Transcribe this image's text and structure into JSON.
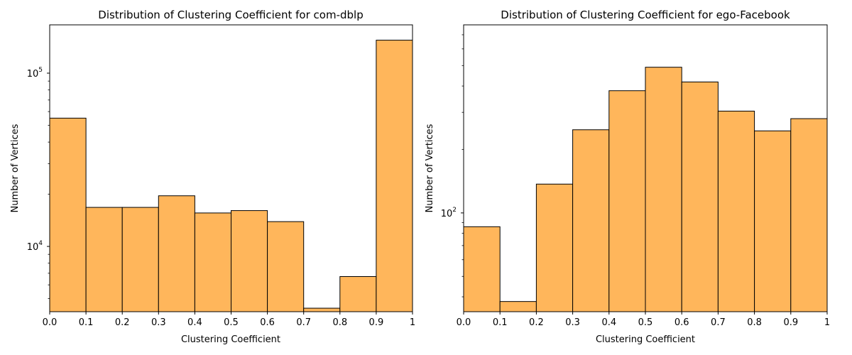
{
  "figure": {
    "bar_color": "#FFB65B",
    "edge_color": "#000000"
  },
  "chart_data": [
    {
      "type": "bar",
      "title": "Distribution of Clustering Coefficient for com-dblp",
      "xlabel": "Clustering Coefficient",
      "ylabel": "Number of Vertices",
      "yscale": "log",
      "xlim": [
        0,
        1
      ],
      "ylim": [
        4200,
        190000
      ],
      "bin_edges": [
        0.0,
        0.1,
        0.2,
        0.3,
        0.4,
        0.5,
        0.6,
        0.7,
        0.8,
        0.9,
        1.0
      ],
      "values": [
        55000,
        16800,
        16800,
        19600,
        15600,
        16100,
        13900,
        4400,
        6700,
        155000
      ],
      "x_ticks": [
        "0.0",
        "0.1",
        "0.2",
        "0.3",
        "0.4",
        "0.5",
        "0.6",
        "0.7",
        "0.8",
        "0.9",
        "1"
      ],
      "y_major_ticks": [
        {
          "value": 10000,
          "base": "10",
          "exp": "4"
        },
        {
          "value": 100000,
          "base": "10",
          "exp": "5"
        }
      ],
      "grid": false
    },
    {
      "type": "bar",
      "title": "Distribution of Clustering Coefficient for ego-Facebook",
      "xlabel": "Clustering Coefficient",
      "ylabel": "Number of Vertices",
      "yscale": "log",
      "xlim": [
        0,
        1
      ],
      "ylim": [
        34,
        780
      ],
      "bin_edges": [
        0.0,
        0.1,
        0.2,
        0.3,
        0.4,
        0.5,
        0.6,
        0.7,
        0.8,
        0.9,
        1.0
      ],
      "values": [
        86,
        38,
        137,
        248,
        380,
        491,
        418,
        304,
        245,
        280
      ],
      "x_ticks": [
        "0.0",
        "0.1",
        "0.2",
        "0.3",
        "0.4",
        "0.5",
        "0.6",
        "0.7",
        "0.8",
        "0.9",
        "1"
      ],
      "y_major_ticks": [
        {
          "value": 100,
          "base": "10",
          "exp": "2"
        }
      ],
      "grid": false
    }
  ]
}
